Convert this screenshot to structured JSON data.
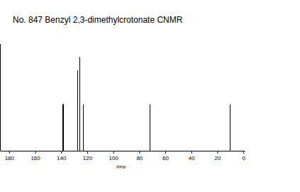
{
  "chart_data": {
    "type": "stick",
    "title": "No. 847 Benzyl 2,3-dimethylcrotonate CNMR",
    "x_label": "PPM",
    "x": [
      139.2,
      138.6,
      127.6,
      126.0,
      123.3,
      72.0,
      10.4
    ],
    "values": [
      65,
      66,
      113,
      132,
      65,
      65,
      65
    ],
    "color": "#000000",
    "xlim": [
      187,
      -1
    ],
    "xticks": [
      180,
      160,
      140,
      120,
      100,
      80,
      60,
      40,
      20,
      0
    ],
    "ylim": [
      0,
      150
    ],
    "grid": false,
    "tick_labels": "x"
  }
}
